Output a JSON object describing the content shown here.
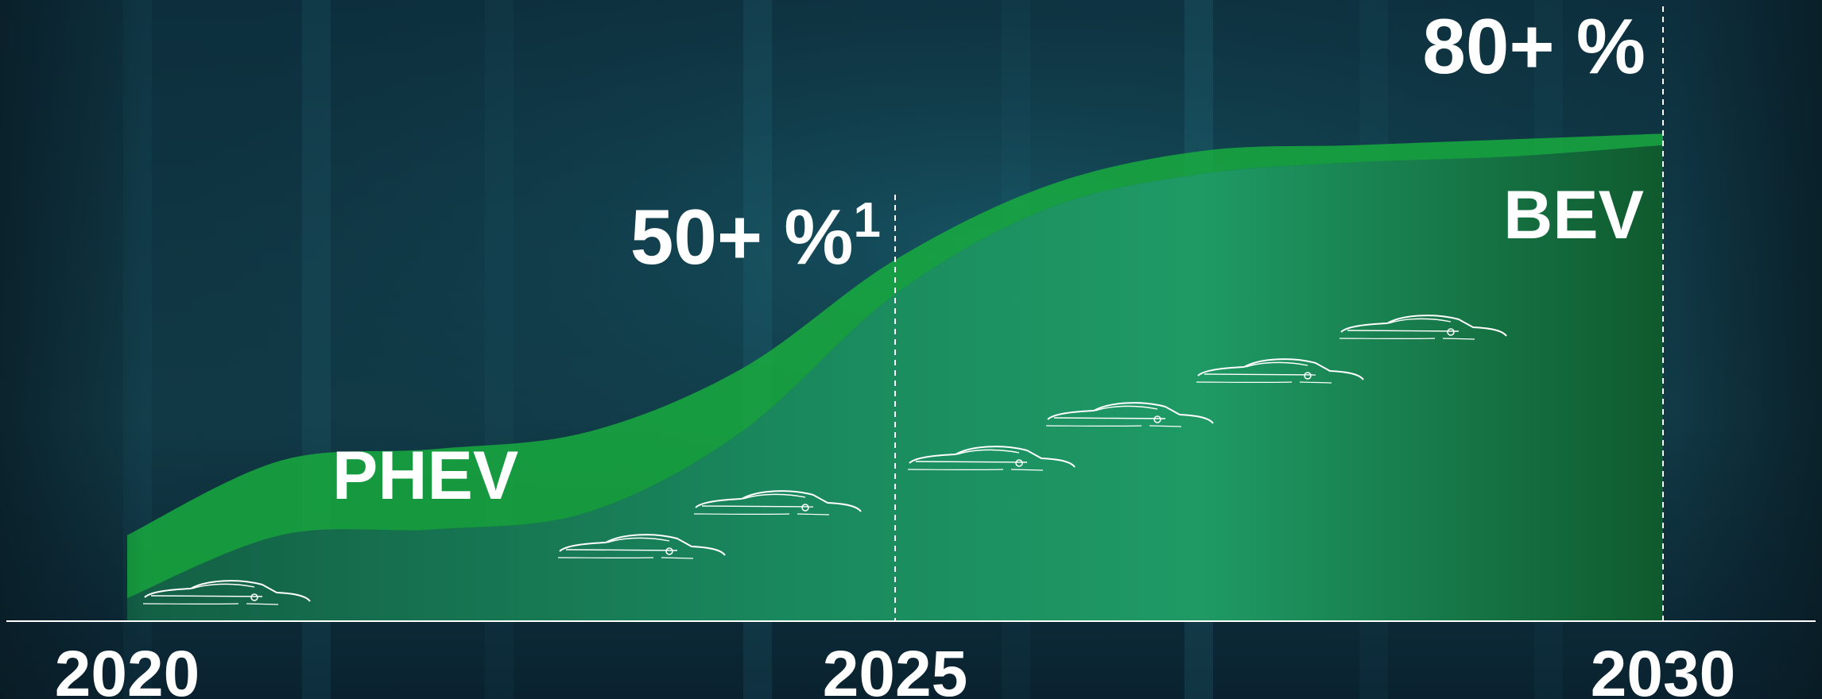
{
  "chart_data": {
    "type": "area",
    "title": "",
    "xlabel": "",
    "ylabel": "",
    "x_ticks": [
      "2020",
      "2025",
      "2030"
    ],
    "xlim": [
      2020,
      2030
    ],
    "ylim": [
      0,
      100
    ],
    "grid": false,
    "series": [
      {
        "name": "BEV",
        "x": [
          2020,
          2021,
          2022,
          2023,
          2024,
          2025,
          2026,
          2027,
          2028,
          2029,
          2030
        ],
        "values": [
          4,
          15,
          16,
          19,
          33,
          57,
          72,
          78,
          80,
          81,
          83
        ]
      },
      {
        "name": "PHEV",
        "x": [
          2020,
          2021,
          2022,
          2023,
          2024,
          2025,
          2026,
          2027,
          2028,
          2029,
          2030
        ],
        "values": [
          15,
          28,
          30,
          33,
          44,
          63,
          76,
          82,
          83,
          84,
          85
        ]
      }
    ],
    "annotations": [
      {
        "label": "50+ %",
        "superscript": "1",
        "x": 2025
      },
      {
        "label": "80+ %",
        "superscript": "",
        "x": 2030
      }
    ],
    "colors": {
      "bev_fill": "#1f8f5a",
      "phev_band": "#18a83c",
      "axis": "#ffffff",
      "background": "#0d2a38"
    }
  },
  "labels": {
    "phev": "PHEV",
    "bev": "BEV"
  },
  "icons": [
    "car-outline-icon"
  ]
}
